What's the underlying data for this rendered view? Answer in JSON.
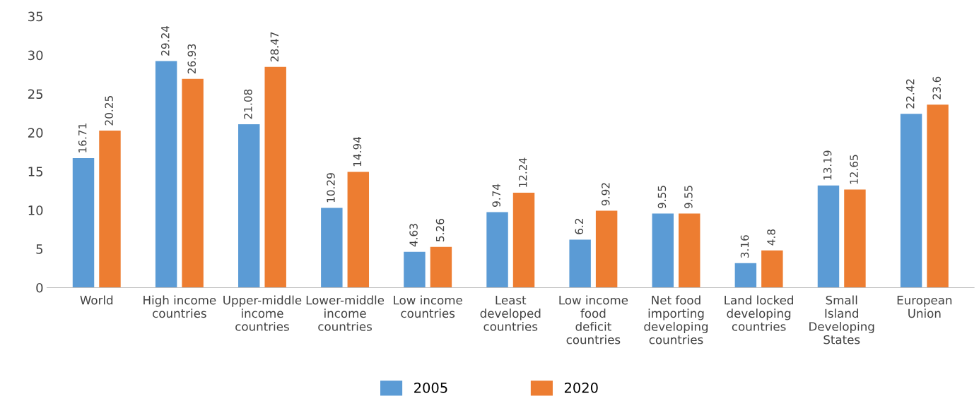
{
  "chart_data": {
    "type": "bar",
    "categories": [
      "World",
      "High income countries",
      "Upper-middle income countries",
      "Lower-middle income countries",
      "Low income countries",
      "Least developed countries",
      "Low income food deficit countries",
      "Net food importing developing countries",
      "Land locked developing countries",
      "Small Island Developing States",
      "European Union"
    ],
    "series": [
      {
        "name": "2005",
        "color": "#5b9bd5",
        "values": [
          16.71,
          29.24,
          21.08,
          10.29,
          4.63,
          9.74,
          6.2,
          9.55,
          3.16,
          13.19,
          22.42
        ],
        "value_labels": [
          "16.71",
          "29.24",
          "21.08",
          "10.29",
          "4.63",
          "9.74",
          "6.2",
          "9.55",
          "3.16",
          "13.19",
          "22.42"
        ]
      },
      {
        "name": "2020",
        "color": "#ed7d31",
        "values": [
          20.25,
          26.93,
          28.47,
          14.94,
          5.26,
          12.24,
          9.92,
          9.55,
          4.8,
          12.65,
          23.6
        ],
        "value_labels": [
          "20.25",
          "26.93",
          "28.47",
          "14.94",
          "5.26",
          "12.24",
          "9.92",
          "9.55",
          "4.8",
          "12.65",
          "23.6"
        ]
      }
    ],
    "ylim": [
      0,
      35
    ],
    "yticks": [
      0,
      5,
      10,
      15,
      20,
      25,
      30,
      35
    ],
    "grid": false,
    "legend": "bottom"
  }
}
